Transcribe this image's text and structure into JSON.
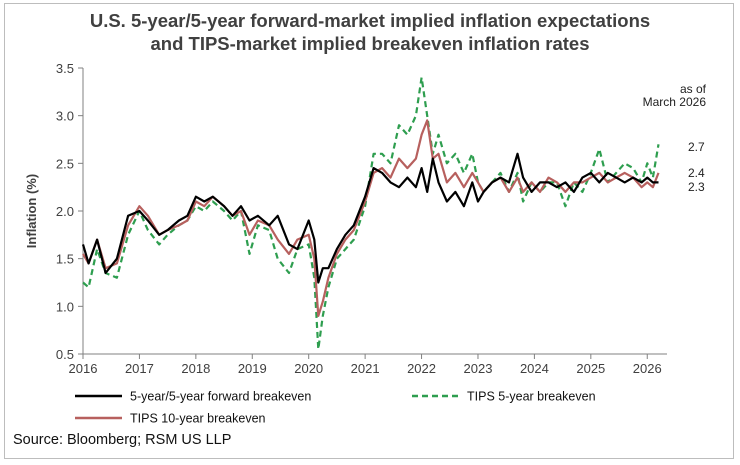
{
  "chart_data": {
    "type": "line",
    "title": "U.S. 5-year/5-year forward-market implied inflation expectations",
    "subtitle": "and TIPS-market implied breakeven inflation rates",
    "ylabel": "Inflation (%)",
    "xlabel": "",
    "ylim": [
      0.5,
      3.5
    ],
    "xlim": [
      2016,
      2026.35
    ],
    "y_ticks": [
      "0.5",
      "1.0",
      "1.5",
      "2.0",
      "2.5",
      "3.0",
      "3.5"
    ],
    "x_ticks": [
      "2016",
      "2017",
      "2018",
      "2019",
      "2020",
      "2021",
      "2022",
      "2023",
      "2024",
      "2025",
      "2026"
    ],
    "annotation_line1": "as of",
    "annotation_line2": "March 2026",
    "end_labels": [
      "2.7",
      "2.4",
      "2.3"
    ],
    "source": "Source: Bloomberg; RSM US LLP",
    "series": [
      {
        "name": "5-year/5-year forward breakeven",
        "color": "#000000",
        "dash": "",
        "x": [
          2016.0,
          2016.1,
          2016.25,
          2016.4,
          2016.6,
          2016.8,
          2017.0,
          2017.15,
          2017.35,
          2017.5,
          2017.7,
          2017.85,
          2018.0,
          2018.15,
          2018.3,
          2018.5,
          2018.65,
          2018.8,
          2018.95,
          2019.1,
          2019.3,
          2019.45,
          2019.65,
          2019.8,
          2020.0,
          2020.1,
          2020.17,
          2020.25,
          2020.35,
          2020.5,
          2020.65,
          2020.8,
          2021.0,
          2021.15,
          2021.3,
          2021.45,
          2021.6,
          2021.75,
          2021.9,
          2022.0,
          2022.1,
          2022.2,
          2022.3,
          2022.45,
          2022.6,
          2022.75,
          2022.9,
          2023.0,
          2023.1,
          2023.25,
          2023.4,
          2023.55,
          2023.7,
          2023.8,
          2023.95,
          2024.1,
          2024.25,
          2024.4,
          2024.55,
          2024.7,
          2024.85,
          2025.0,
          2025.15,
          2025.3,
          2025.45,
          2025.6,
          2025.75,
          2025.9,
          2026.0,
          2026.1,
          2026.2
        ],
        "values": [
          1.65,
          1.45,
          1.7,
          1.35,
          1.5,
          1.95,
          2.0,
          1.9,
          1.75,
          1.8,
          1.9,
          1.95,
          2.15,
          2.1,
          2.15,
          2.05,
          1.95,
          2.05,
          1.9,
          1.95,
          1.85,
          1.95,
          1.65,
          1.6,
          1.9,
          1.7,
          1.25,
          1.4,
          1.4,
          1.6,
          1.75,
          1.85,
          2.15,
          2.45,
          2.4,
          2.3,
          2.25,
          2.35,
          2.25,
          2.45,
          2.2,
          2.55,
          2.3,
          2.1,
          2.2,
          2.05,
          2.3,
          2.1,
          2.2,
          2.3,
          2.35,
          2.3,
          2.6,
          2.35,
          2.2,
          2.3,
          2.3,
          2.25,
          2.3,
          2.2,
          2.35,
          2.4,
          2.3,
          2.4,
          2.35,
          2.3,
          2.35,
          2.3,
          2.35,
          2.3,
          2.3
        ]
      },
      {
        "name": "TIPS 5-year breakeven",
        "color": "#2e9e4f",
        "dash": "6,4",
        "x": [
          2016.0,
          2016.1,
          2016.25,
          2016.4,
          2016.6,
          2016.8,
          2017.0,
          2017.15,
          2017.35,
          2017.5,
          2017.7,
          2017.85,
          2018.0,
          2018.15,
          2018.3,
          2018.5,
          2018.65,
          2018.8,
          2018.95,
          2019.1,
          2019.3,
          2019.45,
          2019.65,
          2019.8,
          2020.0,
          2020.1,
          2020.17,
          2020.25,
          2020.35,
          2020.5,
          2020.65,
          2020.8,
          2021.0,
          2021.15,
          2021.3,
          2021.45,
          2021.6,
          2021.75,
          2021.9,
          2022.0,
          2022.1,
          2022.2,
          2022.3,
          2022.45,
          2022.6,
          2022.75,
          2022.9,
          2023.0,
          2023.1,
          2023.25,
          2023.4,
          2023.55,
          2023.7,
          2023.8,
          2023.95,
          2024.1,
          2024.25,
          2024.4,
          2024.55,
          2024.7,
          2024.85,
          2025.0,
          2025.15,
          2025.3,
          2025.45,
          2025.6,
          2025.75,
          2025.9,
          2026.0,
          2026.1,
          2026.2
        ],
        "values": [
          1.25,
          1.2,
          1.6,
          1.35,
          1.3,
          1.75,
          2.0,
          1.8,
          1.65,
          1.75,
          1.85,
          1.9,
          2.05,
          2.0,
          2.1,
          2.0,
          1.9,
          2.0,
          1.55,
          1.85,
          1.8,
          1.5,
          1.35,
          1.6,
          1.65,
          1.3,
          0.55,
          0.9,
          1.2,
          1.5,
          1.6,
          1.7,
          2.05,
          2.6,
          2.6,
          2.5,
          2.9,
          2.8,
          3.0,
          3.4,
          3.0,
          2.6,
          2.8,
          2.5,
          2.6,
          2.4,
          2.6,
          2.3,
          2.2,
          2.3,
          2.4,
          2.2,
          2.4,
          2.1,
          2.3,
          2.2,
          2.3,
          2.3,
          2.05,
          2.3,
          2.2,
          2.4,
          2.65,
          2.3,
          2.4,
          2.5,
          2.45,
          2.3,
          2.5,
          2.35,
          2.7
        ]
      },
      {
        "name": "TIPS 10-year breakeven",
        "color": "#b7605e",
        "dash": "",
        "x": [
          2016.0,
          2016.1,
          2016.25,
          2016.4,
          2016.6,
          2016.8,
          2017.0,
          2017.15,
          2017.35,
          2017.5,
          2017.7,
          2017.85,
          2018.0,
          2018.15,
          2018.3,
          2018.5,
          2018.65,
          2018.8,
          2018.95,
          2019.1,
          2019.3,
          2019.45,
          2019.65,
          2019.8,
          2020.0,
          2020.1,
          2020.17,
          2020.25,
          2020.35,
          2020.5,
          2020.65,
          2020.8,
          2021.0,
          2021.15,
          2021.3,
          2021.45,
          2021.6,
          2021.75,
          2021.9,
          2022.0,
          2022.1,
          2022.2,
          2022.3,
          2022.45,
          2022.6,
          2022.75,
          2022.9,
          2023.0,
          2023.1,
          2023.25,
          2023.4,
          2023.55,
          2023.7,
          2023.8,
          2023.95,
          2024.1,
          2024.25,
          2024.4,
          2024.55,
          2024.7,
          2024.85,
          2025.0,
          2025.15,
          2025.3,
          2025.45,
          2025.6,
          2025.75,
          2025.9,
          2026.0,
          2026.1,
          2026.2
        ],
        "values": [
          1.55,
          1.45,
          1.7,
          1.4,
          1.45,
          1.85,
          2.05,
          1.95,
          1.75,
          1.8,
          1.85,
          1.9,
          2.1,
          2.05,
          2.15,
          2.05,
          1.95,
          2.0,
          1.75,
          1.9,
          1.85,
          1.7,
          1.55,
          1.7,
          1.75,
          1.5,
          0.9,
          1.05,
          1.3,
          1.55,
          1.7,
          1.8,
          2.1,
          2.4,
          2.45,
          2.35,
          2.55,
          2.45,
          2.55,
          2.8,
          2.95,
          2.55,
          2.6,
          2.3,
          2.4,
          2.25,
          2.4,
          2.3,
          2.2,
          2.3,
          2.35,
          2.2,
          2.35,
          2.2,
          2.3,
          2.2,
          2.35,
          2.3,
          2.2,
          2.3,
          2.3,
          2.35,
          2.4,
          2.3,
          2.35,
          2.4,
          2.35,
          2.25,
          2.3,
          2.25,
          2.4
        ]
      }
    ]
  }
}
